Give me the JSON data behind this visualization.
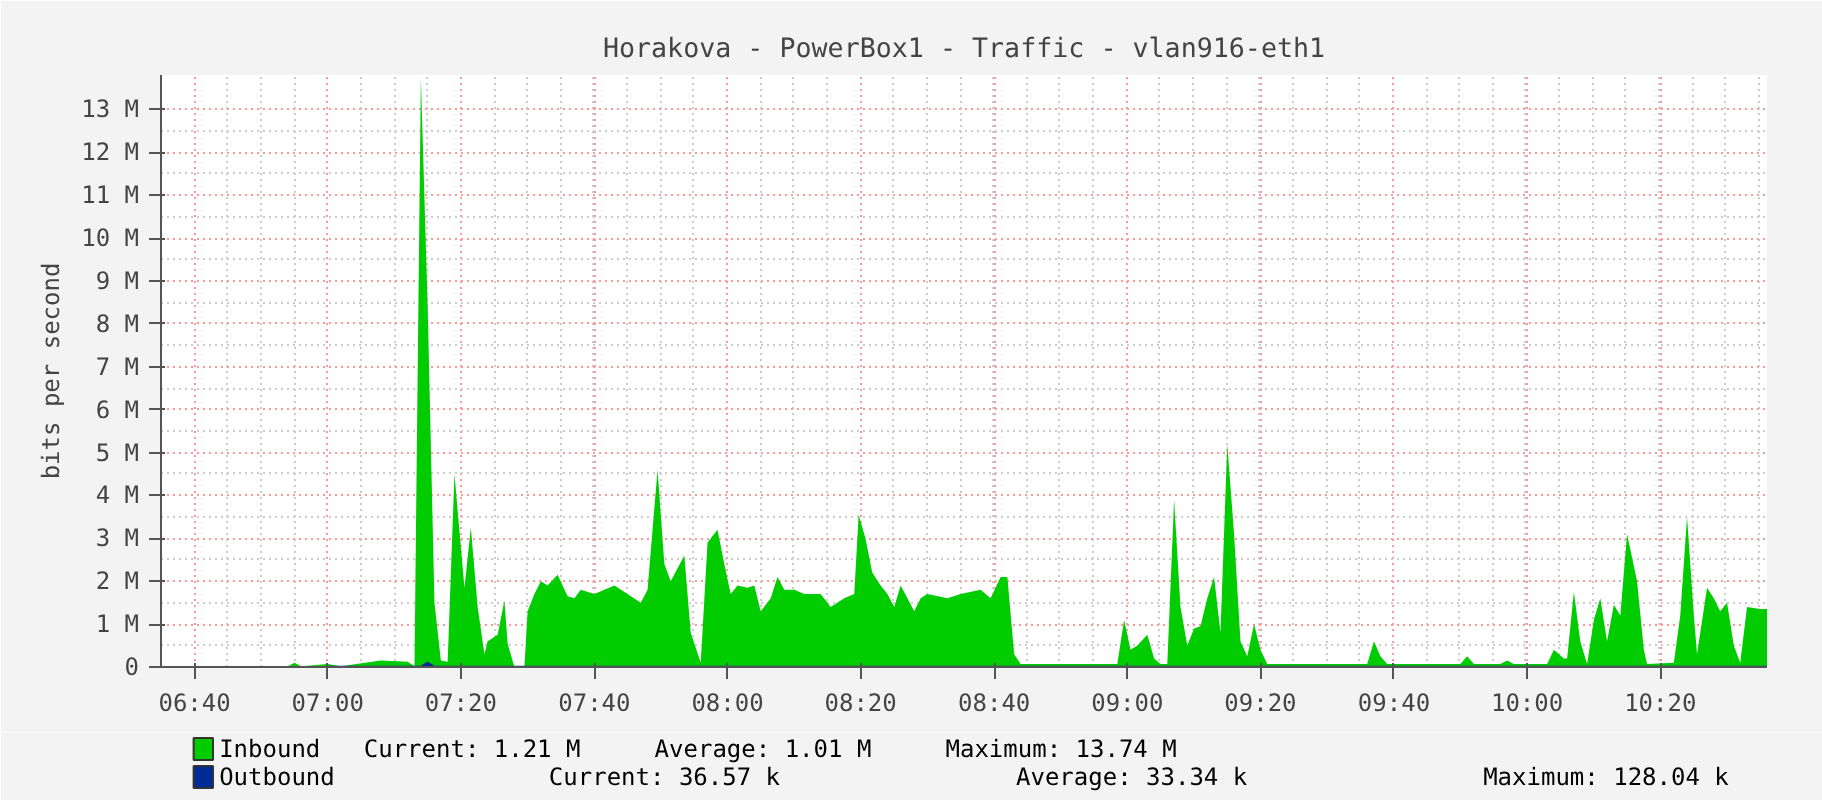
{
  "chart_data": {
    "type": "area",
    "title": "Horakova - PowerBox1 - Traffic - vlan916-eth1",
    "ylabel": "bits per second",
    "xlim": [
      6.583,
      10.6
    ],
    "xticks": [
      {
        "value": 6.667,
        "label": "06:40"
      },
      {
        "value": 7,
        "label": "07:00"
      },
      {
        "value": 7.333,
        "label": "07:20"
      },
      {
        "value": 7.667,
        "label": "07:40"
      },
      {
        "value": 8,
        "label": "08:00"
      },
      {
        "value": 8.333,
        "label": "08:20"
      },
      {
        "value": 8.667,
        "label": "08:40"
      },
      {
        "value": 9,
        "label": "09:00"
      },
      {
        "value": 9.333,
        "label": "09:20"
      },
      {
        "value": 9.667,
        "label": "09:40"
      },
      {
        "value": 10,
        "label": "10:00"
      },
      {
        "value": 10.333,
        "label": "10:20"
      }
    ],
    "ylim": [
      0,
      13.8
    ],
    "yticks": [
      0,
      {
        "value": 1,
        "label": "1 M"
      },
      {
        "value": 2,
        "label": "2 M"
      },
      {
        "value": 3,
        "label": "3 M"
      },
      {
        "value": 4,
        "label": "4 M"
      },
      {
        "value": 5,
        "label": "5 M"
      },
      {
        "value": 6,
        "label": "6 M"
      },
      {
        "value": 7,
        "label": "7 M"
      },
      {
        "value": 8,
        "label": "8 M"
      },
      {
        "value": 9,
        "label": "9 M"
      },
      {
        "value": 10,
        "label": "10 M"
      },
      {
        "value": 11,
        "label": "11 M"
      },
      {
        "value": 12,
        "label": "12 M"
      },
      {
        "value": 13,
        "label": "13 M"
      }
    ],
    "grid": true,
    "legend": "bottom",
    "series": [
      {
        "name": "Inbound",
        "color": "#00cc00",
        "x": [
          6.583,
          6.9,
          6.917,
          6.933,
          7.0,
          7.033,
          7.133,
          7.2,
          7.217,
          7.233,
          7.25,
          7.267,
          7.283,
          7.3,
          7.317,
          7.342,
          7.358,
          7.375,
          7.392,
          7.4,
          7.425,
          7.442,
          7.45,
          7.467,
          7.492,
          7.5,
          7.517,
          7.533,
          7.55,
          7.575,
          7.6,
          7.617,
          7.633,
          7.667,
          7.717,
          7.75,
          7.783,
          7.8,
          7.825,
          7.842,
          7.858,
          7.875,
          7.892,
          7.908,
          7.933,
          7.95,
          7.975,
          7.992,
          8.008,
          8.025,
          8.05,
          8.067,
          8.083,
          8.108,
          8.125,
          8.142,
          8.167,
          8.192,
          8.233,
          8.258,
          8.292,
          8.317,
          8.328,
          8.345,
          8.362,
          8.383,
          8.4,
          8.417,
          8.433,
          8.45,
          8.467,
          8.483,
          8.5,
          8.55,
          8.583,
          8.633,
          8.658,
          8.683,
          8.7,
          8.717,
          8.733,
          8.975,
          8.992,
          9.008,
          9.025,
          9.05,
          9.067,
          9.083,
          9.1,
          9.117,
          9.133,
          9.15,
          9.167,
          9.183,
          9.2,
          9.217,
          9.233,
          9.25,
          9.267,
          9.283,
          9.3,
          9.317,
          9.333,
          9.35,
          9.6,
          9.617,
          9.633,
          9.65,
          9.833,
          9.85,
          9.867,
          9.933,
          9.95,
          9.967,
          10.05,
          10.067,
          10.092,
          10.1,
          10.117,
          10.133,
          10.15,
          10.167,
          10.183,
          10.2,
          10.217,
          10.233,
          10.25,
          10.275,
          10.292,
          10.3,
          10.367,
          10.383,
          10.4,
          10.417,
          10.425,
          10.45,
          10.467,
          10.483,
          10.5,
          10.517,
          10.533,
          10.55,
          10.583,
          10.6
        ],
        "values": [
          0.02,
          0.02,
          0.1,
          0.02,
          0.07,
          0.02,
          0.15,
          0.12,
          0.02,
          13.74,
          8.4,
          1.5,
          0.15,
          0.12,
          4.5,
          1.85,
          3.25,
          1.4,
          0.3,
          0.6,
          0.75,
          1.55,
          0.55,
          0,
          0,
          1.3,
          1.7,
          2.0,
          1.9,
          2.15,
          1.65,
          1.6,
          1.8,
          1.7,
          1.9,
          1.7,
          1.5,
          1.8,
          4.6,
          2.4,
          2.0,
          2.3,
          2.6,
          0.8,
          0.1,
          2.9,
          3.2,
          2.4,
          1.7,
          1.9,
          1.85,
          1.9,
          1.3,
          1.6,
          2.1,
          1.8,
          1.8,
          1.7,
          1.7,
          1.4,
          1.6,
          1.7,
          3.55,
          3.0,
          2.2,
          1.9,
          1.7,
          1.4,
          1.9,
          1.6,
          1.3,
          1.6,
          1.7,
          1.6,
          1.7,
          1.8,
          1.6,
          2.1,
          2.1,
          0.3,
          0.07,
          0.07,
          1.1,
          0.4,
          0.5,
          0.75,
          0.2,
          0.07,
          0.07,
          3.9,
          1.4,
          0.5,
          0.9,
          0.95,
          1.6,
          2.1,
          0.8,
          5.2,
          3.1,
          0.6,
          0.25,
          1.0,
          0.4,
          0.07,
          0.07,
          0.6,
          0.25,
          0.07,
          0.07,
          0.25,
          0.07,
          0.07,
          0.15,
          0.07,
          0.07,
          0.4,
          0.2,
          0.2,
          1.75,
          0.6,
          0.07,
          1.1,
          1.6,
          0.6,
          1.45,
          1.2,
          3.1,
          2.0,
          0.4,
          0.07,
          0.1,
          1.2,
          3.5,
          1.2,
          0.3,
          1.85,
          1.6,
          1.3,
          1.5,
          0.5,
          0.1,
          1.4,
          1.35,
          1.35
        ]
      },
      {
        "name": "Outbound",
        "color": "#002a97",
        "x": [
          7.0,
          7.233,
          7.25,
          7.267,
          10.6
        ],
        "values": [
          0.03,
          0.03,
          0.13,
          0.03,
          0.03
        ]
      }
    ],
    "annotations": [
      "Current:    1.21 M",
      "Average:    1.01 M",
      "Maximum:   13.74 M",
      "Current:   36.57 k",
      "Average:   33.34 k",
      "Maximum:  128.04 k"
    ]
  }
}
